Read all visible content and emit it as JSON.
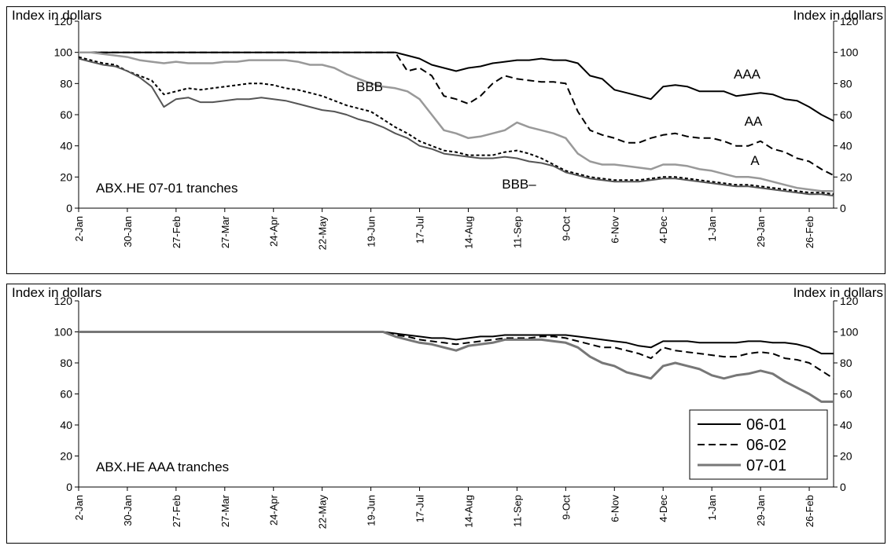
{
  "chart_data": [
    {
      "type": "line",
      "annotation": "ABX.HE 07-01 tranches",
      "ylabel": "Index in dollars",
      "y2label": "Index in dollars",
      "categories": [
        "2-Jan",
        null,
        null,
        null,
        "30-Jan",
        null,
        null,
        null,
        "27-Feb",
        null,
        null,
        null,
        "27-Mar",
        null,
        null,
        null,
        "24-Apr",
        null,
        null,
        null,
        "22-May",
        null,
        null,
        null,
        "19-Jun",
        null,
        null,
        null,
        "17-Jul",
        null,
        null,
        null,
        "14-Aug",
        null,
        null,
        null,
        "11-Sep",
        null,
        null,
        null,
        "9-Oct",
        null,
        null,
        null,
        "6-Nov",
        null,
        null,
        null,
        "4-Dec",
        null,
        null,
        null,
        "1-Jan",
        null,
        null,
        null,
        "29-Jan",
        null,
        null,
        null,
        "26-Feb",
        null,
        null
      ],
      "ylim": [
        0,
        120
      ],
      "yticks": [
        0,
        20,
        40,
        60,
        80,
        100,
        120
      ],
      "y2lim": [
        0,
        120
      ],
      "y2ticks": [
        0,
        20,
        40,
        60,
        80,
        100,
        120
      ],
      "legend": "labels-on-lines",
      "series": [
        {
          "name": "AAA",
          "color": "#000000",
          "style": "solid",
          "values": [
            100,
            100,
            100,
            100,
            100,
            100,
            100,
            100,
            100,
            100,
            100,
            100,
            100,
            100,
            100,
            100,
            100,
            100,
            100,
            100,
            100,
            100,
            100,
            100,
            100,
            100,
            100,
            98,
            96,
            92,
            90,
            88,
            90,
            91,
            93,
            94,
            95,
            95,
            96,
            95,
            95,
            93,
            85,
            83,
            76,
            74,
            72,
            70,
            78,
            79,
            78,
            75,
            75,
            75,
            72,
            73,
            74,
            73,
            70,
            69,
            65,
            60,
            56
          ]
        },
        {
          "name": "AA",
          "color": "#000000",
          "style": "dashed",
          "values": [
            100,
            100,
            100,
            100,
            100,
            100,
            100,
            100,
            100,
            100,
            100,
            100,
            100,
            100,
            100,
            100,
            100,
            100,
            100,
            100,
            100,
            100,
            100,
            100,
            100,
            100,
            100,
            88,
            90,
            85,
            72,
            70,
            67,
            72,
            80,
            85,
            83,
            82,
            81,
            81,
            80,
            62,
            50,
            47,
            45,
            42,
            42,
            45,
            47,
            48,
            46,
            45,
            45,
            43,
            40,
            40,
            43,
            38,
            36,
            32,
            30,
            25,
            21
          ]
        },
        {
          "name": "A",
          "color": "#999999",
          "style": "solid",
          "values": [
            100,
            100,
            99,
            98,
            97,
            95,
            94,
            93,
            94,
            93,
            93,
            93,
            94,
            94,
            95,
            95,
            95,
            95,
            94,
            92,
            92,
            90,
            86,
            83,
            80,
            78,
            77,
            75,
            70,
            60,
            50,
            48,
            45,
            46,
            48,
            50,
            55,
            52,
            50,
            48,
            45,
            35,
            30,
            28,
            28,
            27,
            26,
            25,
            28,
            28,
            27,
            25,
            24,
            22,
            20,
            20,
            19,
            17,
            15,
            13,
            12,
            11,
            11
          ]
        },
        {
          "name": "BBB",
          "color": "#000000",
          "style": "dotted",
          "values": [
            97,
            95,
            93,
            92,
            88,
            85,
            82,
            73,
            75,
            77,
            76,
            77,
            78,
            79,
            80,
            80,
            79,
            77,
            76,
            74,
            72,
            69,
            66,
            64,
            62,
            57,
            52,
            48,
            43,
            40,
            37,
            36,
            34,
            34,
            34,
            36,
            37,
            35,
            32,
            28,
            24,
            22,
            20,
            19,
            18,
            18,
            18,
            19,
            20,
            20,
            19,
            18,
            17,
            16,
            15,
            15,
            14,
            13,
            12,
            11,
            10,
            10,
            9
          ]
        },
        {
          "name": "BBB–",
          "color": "#555555",
          "style": "solid",
          "values": [
            96,
            94,
            92,
            91,
            88,
            84,
            78,
            65,
            70,
            71,
            68,
            68,
            69,
            70,
            70,
            71,
            70,
            69,
            67,
            65,
            63,
            62,
            60,
            57,
            55,
            52,
            48,
            45,
            40,
            38,
            35,
            34,
            33,
            32,
            32,
            33,
            32,
            30,
            29,
            27,
            23,
            21,
            19,
            18,
            17,
            17,
            17,
            18,
            19,
            19,
            18,
            17,
            16,
            15,
            14,
            14,
            13,
            12,
            11,
            10,
            9,
            9,
            8
          ]
        }
      ]
    },
    {
      "type": "line",
      "annotation": "ABX.HE AAA tranches",
      "ylabel": "Index in dollars",
      "y2label": "Index in dollars",
      "categories": [
        "2-Jan",
        null,
        null,
        null,
        "30-Jan",
        null,
        null,
        null,
        "27-Feb",
        null,
        null,
        null,
        "27-Mar",
        null,
        null,
        null,
        "24-Apr",
        null,
        null,
        null,
        "22-May",
        null,
        null,
        null,
        "19-Jun",
        null,
        null,
        null,
        "17-Jul",
        null,
        null,
        null,
        "14-Aug",
        null,
        null,
        null,
        "11-Sep",
        null,
        null,
        null,
        "9-Oct",
        null,
        null,
        null,
        "6-Nov",
        null,
        null,
        null,
        "4-Dec",
        null,
        null,
        null,
        "1-Jan",
        null,
        null,
        null,
        "29-Jan",
        null,
        null,
        null,
        "26-Feb",
        null,
        null
      ],
      "ylim": [
        0,
        120
      ],
      "yticks": [
        0,
        20,
        40,
        60,
        80,
        100,
        120
      ],
      "y2lim": [
        0,
        120
      ],
      "y2ticks": [
        0,
        20,
        40,
        60,
        80,
        100,
        120
      ],
      "legend": "lower right",
      "series": [
        {
          "name": "06-01",
          "color": "#000000",
          "style": "solid",
          "values": [
            100,
            100,
            100,
            100,
            100,
            100,
            100,
            100,
            100,
            100,
            100,
            100,
            100,
            100,
            100,
            100,
            100,
            100,
            100,
            100,
            100,
            100,
            100,
            100,
            100,
            100,
            99,
            98,
            97,
            96,
            96,
            95,
            96,
            97,
            97,
            98,
            98,
            98,
            98,
            98,
            98,
            97,
            96,
            95,
            94,
            93,
            91,
            90,
            94,
            94,
            94,
            93,
            93,
            93,
            93,
            94,
            94,
            93,
            93,
            92,
            90,
            86,
            86
          ]
        },
        {
          "name": "06-02",
          "color": "#000000",
          "style": "dashed",
          "values": [
            100,
            100,
            100,
            100,
            100,
            100,
            100,
            100,
            100,
            100,
            100,
            100,
            100,
            100,
            100,
            100,
            100,
            100,
            100,
            100,
            100,
            100,
            100,
            100,
            100,
            100,
            98,
            97,
            95,
            94,
            93,
            92,
            93,
            94,
            95,
            96,
            96,
            96,
            97,
            97,
            96,
            94,
            92,
            90,
            90,
            88,
            86,
            83,
            90,
            88,
            87,
            86,
            85,
            84,
            84,
            86,
            87,
            86,
            83,
            82,
            80,
            75,
            70
          ]
        },
        {
          "name": "07-01",
          "color": "#777777",
          "style": "solid",
          "values": [
            100,
            100,
            100,
            100,
            100,
            100,
            100,
            100,
            100,
            100,
            100,
            100,
            100,
            100,
            100,
            100,
            100,
            100,
            100,
            100,
            100,
            100,
            100,
            100,
            100,
            100,
            97,
            95,
            93,
            92,
            90,
            88,
            91,
            92,
            93,
            95,
            95,
            95,
            95,
            94,
            93,
            90,
            84,
            80,
            78,
            74,
            72,
            70,
            78,
            80,
            78,
            76,
            72,
            70,
            72,
            73,
            75,
            73,
            68,
            64,
            60,
            55,
            55
          ]
        }
      ]
    }
  ]
}
